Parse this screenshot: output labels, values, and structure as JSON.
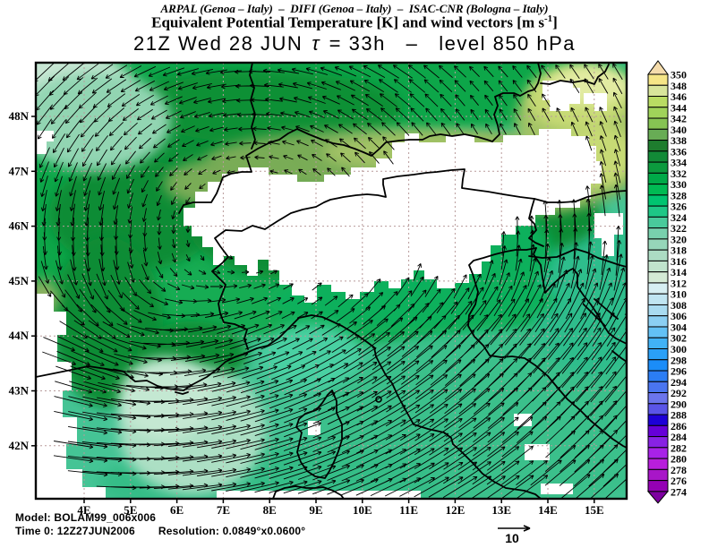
{
  "header": {
    "institutions": "ARPAL (Genoa – Italy)  –  DIFI (Genoa – Italy)  –  ISAC-CNR (Bologna – Italy)",
    "title_main": "Equivalent Potential Temperature [K] and wind vectors [m s",
    "title_sup": "-1",
    "title_close": "]",
    "datetime_pre": "21Z Wed 28 JUN",
    "tau_symbol": "τ",
    "datetime_post": " = 33h   –   level 850 hPa"
  },
  "map": {
    "x_tick_labels": [
      "4E",
      "5E",
      "6E",
      "7E",
      "8E",
      "9E",
      "10E",
      "11E",
      "12E",
      "13E",
      "14E",
      "15E"
    ],
    "x_tick_lons": [
      4,
      5,
      6,
      7,
      8,
      9,
      10,
      11,
      12,
      13,
      14,
      15
    ],
    "y_tick_labels": [
      "48N",
      "47N",
      "46N",
      "45N",
      "44N",
      "43N",
      "42N"
    ],
    "y_tick_lats": [
      48,
      47,
      46,
      45,
      44,
      43,
      42
    ]
  },
  "colorbar": {
    "labels": [
      "350",
      "348",
      "346",
      "344",
      "342",
      "340",
      "338",
      "336",
      "334",
      "332",
      "330",
      "328",
      "326",
      "324",
      "322",
      "320",
      "318",
      "316",
      "314",
      "312",
      "310",
      "308",
      "306",
      "304",
      "302",
      "300",
      "298",
      "296",
      "294",
      "292",
      "290",
      "288",
      "286",
      "284",
      "282",
      "280",
      "278",
      "276",
      "274"
    ],
    "cell_colors": [
      "#F6E687",
      "#D8E59B",
      "#B9DC63",
      "#A0D35A",
      "#86C353",
      "#68AC55",
      "#1E7D2E",
      "#128A37",
      "#0C9A3E",
      "#00AA48",
      "#00BA53",
      "#00C470",
      "#1EC786",
      "#49CA9B",
      "#78D0AD",
      "#96D6B9",
      "#ACDCC3",
      "#C0E3CC",
      "#D4EAD5",
      "#D7EFF3",
      "#C0E5F2",
      "#A9DBF1",
      "#8BCFF3",
      "#63C1F5",
      "#41B2F6",
      "#2AA0F7",
      "#1B8DF8",
      "#2B7DF4",
      "#4A75F0",
      "#6B75EC",
      "#5A55E8",
      "#1D00D7",
      "#6600D8",
      "#8822E4",
      "#A822E8",
      "#B81EDC",
      "#A816C8",
      "#9400B4"
    ],
    "over_color": "#F5DCAC",
    "under_color": "#7D00A0"
  },
  "footer": {
    "model_label": "Model: ",
    "model_value": "BOLAM99_006x006",
    "time_label": "Time 0: ",
    "time_value": "12Z27JUN2006",
    "resolution_label": "Resolution: ",
    "resolution_value": "0.0849°x0.0600°",
    "wind_scale_value": "10"
  },
  "chart_data": {
    "type": "heatmap",
    "title": "Equivalent Potential Temperature [K] and wind vectors [m s-1]",
    "institutions": "ARPAL (Genoa - Italy) - DIFI (Genoa - Italy) - ISAC-CNR (Bologna - Italy)",
    "valid_time": "21Z Wed 28 JUN",
    "forecast_lead_h": 33,
    "level_hPa": 850,
    "model": "BOLAM99_006x006",
    "init_time": "12Z27JUN2006",
    "grid_resolution": "0.0849°x0.0600°",
    "x_axis": {
      "ticks": [
        "4E",
        "5E",
        "6E",
        "7E",
        "8E",
        "9E",
        "10E",
        "11E",
        "12E",
        "13E",
        "14E",
        "15E"
      ],
      "range_lon_deg_e": [
        3.0,
        15.5
      ]
    },
    "y_axis": {
      "ticks": [
        "42N",
        "43N",
        "44N",
        "45N",
        "46N",
        "47N",
        "48N"
      ],
      "range_lat_deg_n": [
        41.0,
        49.0
      ]
    },
    "colorbar_levels_K": [
      274,
      276,
      278,
      280,
      282,
      284,
      286,
      288,
      290,
      292,
      294,
      296,
      298,
      300,
      302,
      304,
      306,
      308,
      310,
      312,
      314,
      316,
      318,
      320,
      322,
      324,
      326,
      328,
      330,
      332,
      334,
      336,
      338,
      340,
      342,
      344,
      346,
      348,
      350
    ],
    "wind_reference_m_s": 10,
    "legend_position": "right",
    "graticule": "dashed lat-lon grid every 1 degree",
    "field_notes": [
      "theta-e 320-328 K (teal greens) over the western Mediterranean, Tyrrhenian Sea and peninsular Italy",
      "theta-e 330-340 K (dark greens) across France and around the Alpine rim",
      "theta-e 340-350 K (olive/yellow-green) along the Alpine crest and near 13-15E 47-48.5N",
      "white areas are masked where the 850 hPa surface lies below model orography (Alps, Massif Central)",
      "cyclonic circulation: northerly Mistral flow down the Rhone valley turning eastward over the sea; strong southwesterlies (~10 m/s) over central Italy toward the Adriatic; weak convergent winds near 13.5E 47.5N"
    ]
  }
}
